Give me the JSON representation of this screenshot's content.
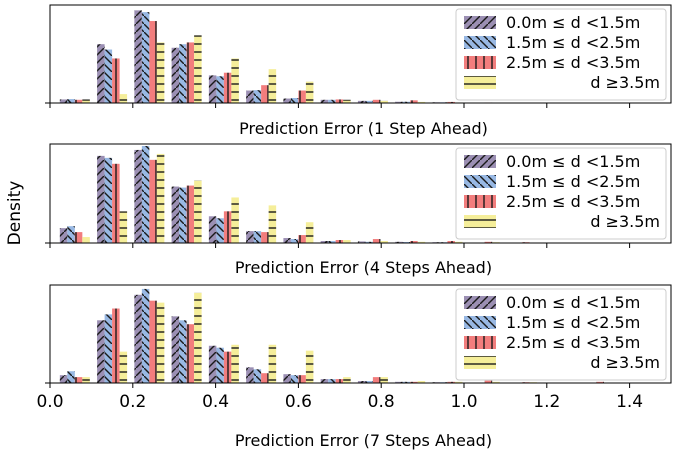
{
  "chart_data": {
    "type": "bar",
    "ylabel": "Density",
    "xlim": [
      0.0,
      1.5
    ],
    "xticks": [
      0.0,
      0.2,
      0.4,
      0.6,
      0.8,
      1.0,
      1.2,
      1.4
    ],
    "xtick_labels": [
      "0.0",
      "0.2",
      "0.4",
      "0.6",
      "0.8",
      "1.0",
      "1.2",
      "1.4"
    ],
    "bin_centers": [
      0.06,
      0.15,
      0.24,
      0.33,
      0.42,
      0.51,
      0.6,
      0.69,
      0.78,
      0.87,
      0.96,
      1.05,
      1.14,
      1.23,
      1.32
    ],
    "legend_position": "top-right",
    "series": [
      {
        "name": "0.0m ≤ d <1.5m",
        "label_left": "0.0m ≤ d <1.5m",
        "label_right": "",
        "color": "#9b8fb3",
        "hatch": "/"
      },
      {
        "name": "1.5m ≤ d <2.5m",
        "label_left": "1.5m ≤ d <2.5m",
        "label_right": "",
        "color": "#98b8e3",
        "hatch": "\\"
      },
      {
        "name": "2.5m ≤ d <3.5m",
        "label_left": "2.5m ≤ d <3.5m",
        "label_right": "",
        "color": "#f27d7d",
        "hatch": "|"
      },
      {
        "name": "d ≥3.5m",
        "label_left": "",
        "label_right": "d ≥3.5m",
        "color": "#f5ee9a",
        "hatch": "-"
      }
    ],
    "panels": [
      {
        "xlabel": "Prediction Error (1 Step Ahead)",
        "ylim": [
          0,
          5.5
        ],
        "values": [
          [
            0.2,
            3.3,
            5.2,
            3.1,
            1.55,
            0.7,
            0.25,
            0.18,
            0.12,
            0.07,
            0.04,
            0.02,
            0,
            0,
            0
          ],
          [
            0.22,
            3.0,
            5.1,
            3.3,
            1.5,
            0.72,
            0.28,
            0.18,
            0.12,
            0.07,
            0.04,
            0.02,
            0,
            0,
            0
          ],
          [
            0.18,
            2.5,
            4.6,
            3.4,
            1.7,
            1.0,
            0.7,
            0.2,
            0.18,
            0.15,
            0.06,
            0.03,
            0,
            0,
            0
          ],
          [
            0.2,
            0.5,
            3.4,
            3.8,
            2.5,
            1.9,
            1.2,
            0.18,
            0.12,
            0.06,
            0.03,
            0.01,
            0,
            0,
            0
          ]
        ]
      },
      {
        "xlabel": "Prediction Error (4 Steps Ahead)",
        "ylim": [
          0,
          5.0
        ],
        "values": [
          [
            0.75,
            4.4,
            4.7,
            2.85,
            1.35,
            0.6,
            0.25,
            0.1,
            0.08,
            0.06,
            0.04,
            0.02,
            0.02,
            0.01,
            0
          ],
          [
            0.85,
            4.3,
            4.9,
            2.8,
            1.25,
            0.6,
            0.2,
            0.1,
            0.06,
            0.05,
            0.04,
            0.02,
            0.02,
            0.01,
            0
          ],
          [
            0.55,
            4.0,
            4.2,
            2.9,
            1.6,
            0.55,
            0.4,
            0.15,
            0.2,
            0.1,
            0.1,
            0.06,
            0.04,
            0.02,
            0.02
          ],
          [
            0.3,
            1.6,
            4.5,
            3.15,
            2.3,
            1.9,
            1.05,
            0.15,
            0.1,
            0.06,
            0.06,
            0.04,
            0.02,
            0.02,
            0.01
          ]
        ]
      },
      {
        "xlabel": "Prediction Error (7 Steps Ahead)",
        "ylim": [
          0,
          5.0
        ],
        "values": [
          [
            0.4,
            3.2,
            4.5,
            3.4,
            1.9,
            0.8,
            0.45,
            0.2,
            0.1,
            0.06,
            0.04,
            0.02,
            0.02,
            0.01,
            0
          ],
          [
            0.6,
            3.5,
            4.8,
            3.2,
            1.8,
            0.7,
            0.4,
            0.2,
            0.1,
            0.06,
            0.04,
            0.02,
            0.02,
            0.01,
            0
          ],
          [
            0.3,
            3.8,
            4.2,
            3.0,
            1.6,
            0.5,
            0.4,
            0.2,
            0.3,
            0.06,
            0.06,
            0.12,
            0.04,
            0.02,
            0.06
          ],
          [
            0.3,
            1.6,
            4.1,
            4.6,
            1.95,
            1.95,
            1.65,
            0.3,
            0.3,
            0.1,
            0.06,
            0.06,
            0.04,
            0.02,
            0.02
          ]
        ]
      }
    ]
  }
}
